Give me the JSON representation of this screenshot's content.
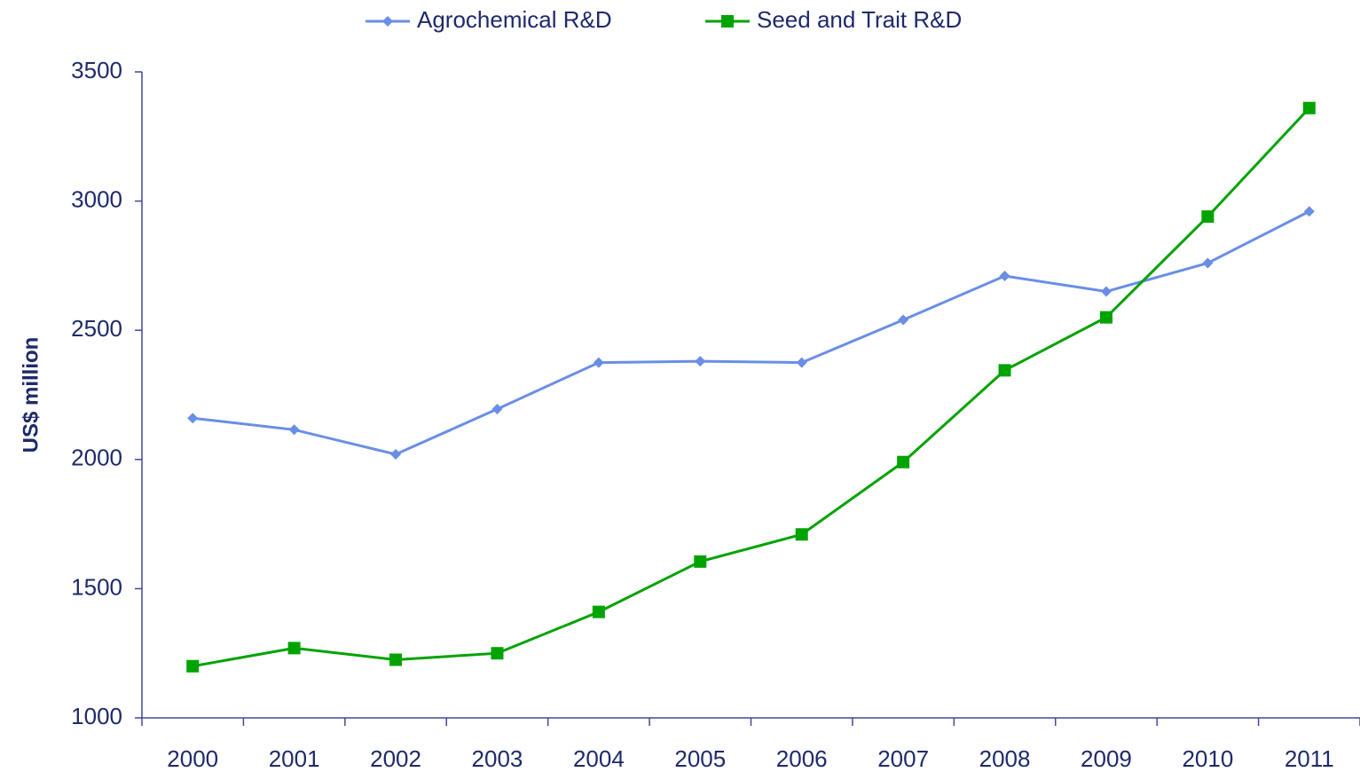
{
  "chart_data": {
    "type": "line",
    "categories": [
      "2000",
      "2001",
      "2002",
      "2003",
      "2004",
      "2005",
      "2006",
      "2007",
      "2008",
      "2009",
      "2010",
      "2011"
    ],
    "series": [
      {
        "name": "Agrochemical R&D",
        "color": "#6a8ee6",
        "marker": "diamond",
        "values": [
          2160,
          2115,
          2020,
          2195,
          2375,
          2380,
          2375,
          2540,
          2710,
          2650,
          2760,
          2960
        ]
      },
      {
        "name": "Seed and Trait R&D",
        "color": "#00a300",
        "marker": "square",
        "values": [
          1200,
          1270,
          1225,
          1250,
          1410,
          1605,
          1710,
          1990,
          2345,
          2550,
          2940,
          3360
        ]
      }
    ],
    "ylabel": "US$ million",
    "ylim": [
      1000,
      3500
    ],
    "yticks": [
      1000,
      1500,
      2000,
      2500,
      3000,
      3500
    ],
    "grid": false,
    "legend": "top"
  }
}
